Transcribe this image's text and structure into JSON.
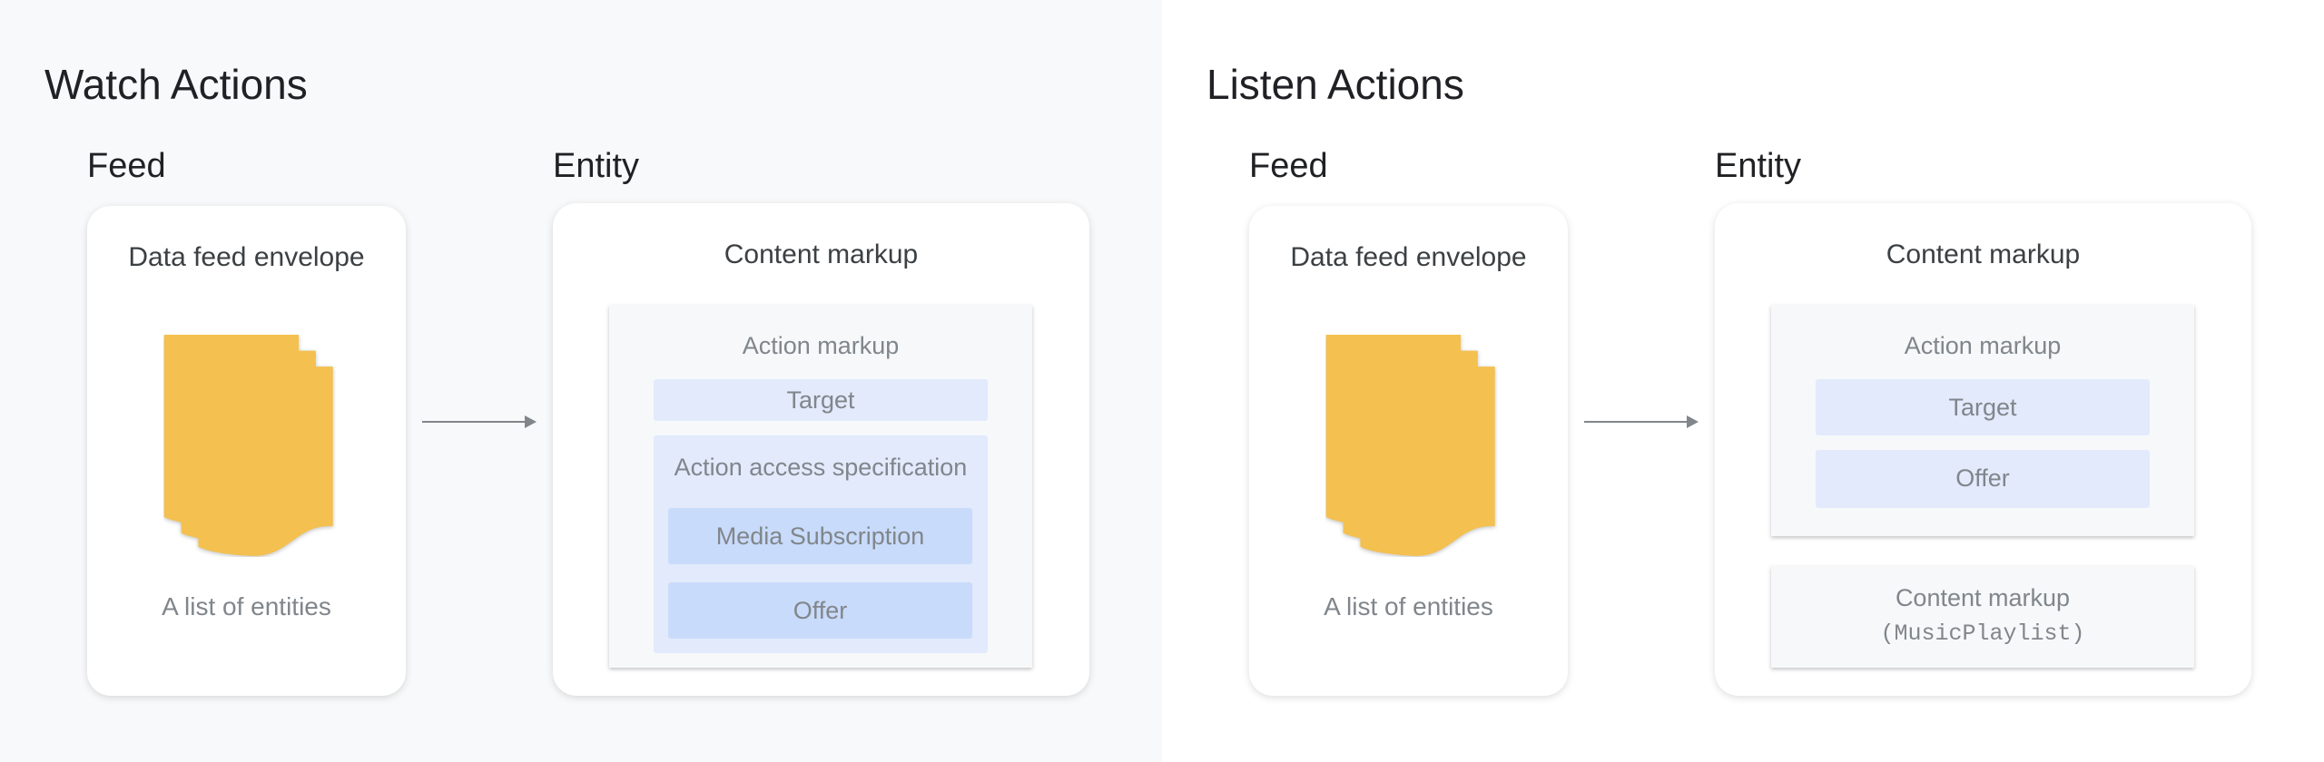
{
  "watch": {
    "title": "Watch Actions",
    "feed_label": "Feed",
    "entity_label": "Entity",
    "feed_card": {
      "title": "Data feed envelope",
      "caption": "A list of entities",
      "icon": "documents-stack-icon"
    },
    "entity_card": {
      "title": "Content markup",
      "action_markup": {
        "title": "Action markup",
        "target": "Target",
        "access_spec": {
          "title": "Action access specification",
          "items": [
            "Media Subscription",
            "Offer"
          ]
        }
      }
    }
  },
  "listen": {
    "title": "Listen Actions",
    "feed_label": "Feed",
    "entity_label": "Entity",
    "feed_card": {
      "title": "Data feed envelope",
      "caption": "A list of entities",
      "icon": "documents-stack-icon"
    },
    "entity_card": {
      "title": "Content markup",
      "action_markup": {
        "title": "Action markup",
        "items": [
          "Target",
          "Offer"
        ]
      },
      "content_box": {
        "title": "Content markup",
        "type": "(MusicPlaylist)"
      }
    }
  },
  "colors": {
    "doc_yellow": "#f4c04f",
    "light_blue": "#e2eafc",
    "blue": "#c9dbfa",
    "arrow": "#80868b"
  }
}
